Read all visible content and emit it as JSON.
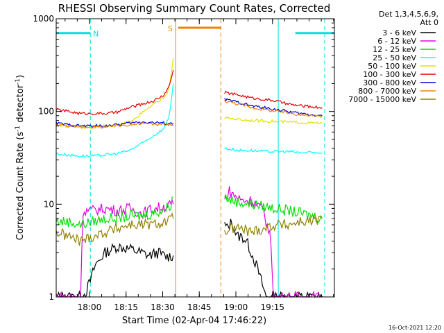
{
  "chart_data": {
    "type": "line",
    "title": "RHESSI Observing Summary Count Rates, Corrected",
    "xlabel": "Start Time (02-Apr-04 17:46:22)",
    "ylabel": "Corrected Count Rate (s",
    "ylabel_sup1": "-1",
    "ylabel_mid": " detector",
    "ylabel_sup2": "-1",
    "ylabel_end": ")",
    "yscale": "log",
    "ylim": [
      1,
      1000
    ],
    "xlim_min": [
      0,
      114
    ],
    "x_unit": "minutes after 17:46:22",
    "x_ticks": [
      {
        "min": 13.633,
        "label": "18:00"
      },
      {
        "min": 28.633,
        "label": "18:15"
      },
      {
        "min": 43.633,
        "label": "18:30"
      },
      {
        "min": 58.633,
        "label": "18:45"
      },
      {
        "min": 73.633,
        "label": "19:00"
      },
      {
        "min": 88.633,
        "label": "19:15"
      }
    ],
    "y_ticks": [
      {
        "value": 1,
        "label": "1"
      },
      {
        "value": 10,
        "label": "10"
      },
      {
        "value": 100,
        "label": "100"
      },
      {
        "value": 1000,
        "label": "1000"
      }
    ],
    "legend_header": [
      "Det 1,3,4,5,6,9,",
      "Att 0"
    ],
    "legend_position": "right",
    "footer_date": "16-Oct-2021 12:20",
    "gaps": [
      [
        48.5,
        68.5
      ]
    ],
    "series": [
      {
        "name": "3 - 6 keV",
        "color": "#000000",
        "x": [
          0,
          10,
          12,
          14,
          16,
          20,
          25,
          30,
          35,
          38,
          40,
          42,
          45,
          48,
          69,
          70,
          72,
          74,
          76,
          78,
          80,
          82,
          84,
          86,
          90,
          100,
          105,
          109
        ],
        "y": [
          1,
          1,
          1.1,
          1.5,
          2.2,
          3.0,
          3.5,
          3.3,
          3.0,
          2.8,
          2.9,
          3.0,
          2.7,
          2.8,
          6.0,
          5.5,
          6.5,
          4.5,
          4.5,
          4.0,
          3.0,
          2.2,
          1.5,
          1.0,
          1,
          1,
          1,
          1
        ]
      },
      {
        "name": "6 - 12 keV",
        "color": "#e000e0",
        "x": [
          0,
          10,
          11,
          14,
          20,
          25,
          30,
          35,
          40,
          45,
          48,
          69,
          71,
          72,
          74,
          76,
          80,
          85,
          88,
          89,
          90,
          100,
          109
        ],
        "y": [
          1,
          1,
          8.5,
          8.5,
          9.0,
          8.5,
          9.0,
          8.0,
          9.0,
          9.5,
          10,
          11,
          14,
          13,
          12,
          11,
          11,
          8.5,
          4.0,
          1.0,
          1,
          1,
          1
        ]
      },
      {
        "name": "12 - 25 keV",
        "color": "#00e000",
        "x": [
          0,
          5,
          10,
          15,
          20,
          25,
          30,
          35,
          40,
          45,
          47,
          48,
          69,
          72,
          75,
          80,
          85,
          90,
          95,
          100,
          105,
          109
        ],
        "y": [
          6.5,
          6.5,
          6.0,
          6.5,
          7.0,
          7.0,
          7.5,
          7.5,
          8.0,
          9.0,
          10,
          12,
          12,
          11,
          10.5,
          10,
          9.5,
          9.0,
          8.5,
          8.0,
          7.5,
          7.0
        ]
      },
      {
        "name": "25 - 50 keV",
        "color": "#00ffff",
        "x": [
          0,
          5,
          10,
          15,
          20,
          25,
          30,
          35,
          40,
          44,
          46,
          47,
          48,
          69,
          72,
          75,
          80,
          85,
          90,
          95,
          100,
          105,
          109
        ],
        "y": [
          35,
          34,
          33,
          33,
          34,
          35,
          38,
          45,
          55,
          65,
          85,
          120,
          200,
          40,
          39,
          38,
          38,
          37,
          37,
          37,
          36,
          36,
          36
        ]
      },
      {
        "name": "50 - 100 keV",
        "color": "#e0e000",
        "x": [
          0,
          5,
          10,
          15,
          20,
          25,
          30,
          35,
          40,
          44,
          46,
          47,
          48,
          69,
          72,
          75,
          80,
          85,
          90,
          95,
          100,
          105,
          109
        ],
        "y": [
          70,
          70,
          68,
          68,
          70,
          70,
          78,
          95,
          120,
          140,
          170,
          230,
          380,
          85,
          84,
          82,
          80,
          79,
          78,
          77,
          76,
          75,
          75
        ]
      },
      {
        "name": "100 - 300 keV",
        "color": "#e00000",
        "x": [
          0,
          5,
          10,
          15,
          20,
          25,
          30,
          35,
          40,
          44,
          46,
          47,
          48,
          69,
          72,
          75,
          80,
          85,
          90,
          95,
          100,
          105,
          109
        ],
        "y": [
          105,
          100,
          95,
          95,
          95,
          98,
          110,
          120,
          130,
          150,
          180,
          220,
          280,
          160,
          155,
          150,
          140,
          135,
          130,
          120,
          115,
          112,
          110
        ]
      },
      {
        "name": "300 - 800 keV",
        "color": "#0000e0",
        "x": [
          0,
          5,
          10,
          15,
          20,
          25,
          30,
          35,
          40,
          44,
          46,
          47,
          48,
          69,
          72,
          75,
          80,
          85,
          90,
          95,
          100,
          105,
          109
        ],
        "y": [
          75,
          72,
          70,
          70,
          70,
          72,
          75,
          77,
          76,
          75,
          74,
          74,
          74,
          135,
          130,
          125,
          115,
          110,
          105,
          100,
          95,
          92,
          90
        ]
      },
      {
        "name": "800 - 7000 keV",
        "color": "#f08000",
        "x": [
          0,
          5,
          10,
          15,
          20,
          25,
          30,
          35,
          40,
          44,
          46,
          47,
          48,
          69,
          72,
          75,
          80,
          85,
          90,
          95,
          100,
          105,
          109
        ],
        "y": [
          72,
          70,
          68,
          68,
          68,
          70,
          72,
          74,
          73,
          72,
          72,
          72,
          72,
          130,
          125,
          120,
          110,
          105,
          100,
          97,
          92,
          90,
          88
        ]
      },
      {
        "name": "7000 - 15000 keV",
        "color": "#908000",
        "x": [
          0,
          5,
          10,
          15,
          20,
          25,
          30,
          35,
          40,
          45,
          48,
          69,
          72,
          75,
          80,
          85,
          90,
          95,
          100,
          105,
          109
        ],
        "y": [
          5.0,
          4.5,
          4.0,
          4.5,
          5.0,
          5.5,
          6.0,
          6.0,
          6.0,
          6.5,
          7.0,
          5.0,
          5.5,
          5.5,
          5.0,
          5.5,
          6.0,
          6.0,
          6.5,
          6.5,
          7.0
        ]
      }
    ],
    "flags": [
      {
        "label": "N",
        "color": "#00e0e0",
        "intervals": [
          [
            0,
            14
          ],
          [
            98,
            114
          ]
        ],
        "level": 700,
        "bounds": [
          14,
          91,
          110
        ]
      },
      {
        "label": "S",
        "color": "#f08000",
        "intervals": [
          [
            50,
            67.5
          ]
        ],
        "level": 800,
        "bounds": [
          49,
          67.5
        ]
      }
    ]
  }
}
